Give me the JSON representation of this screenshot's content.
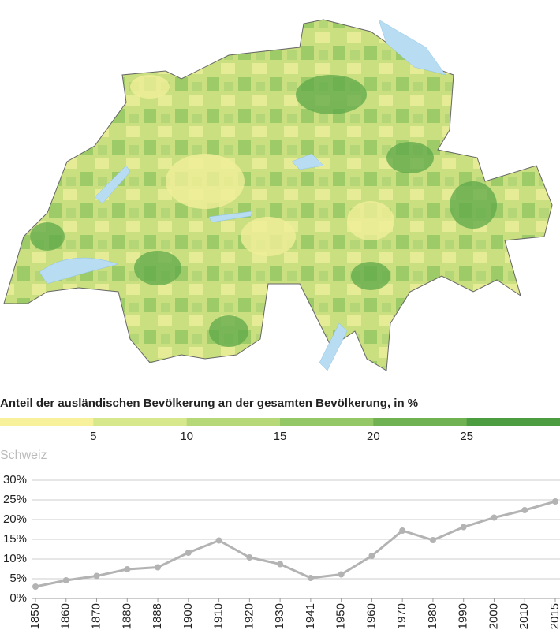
{
  "map": {
    "legend_title": "Anteil der ausländischen Bevölkerung an der gesamten Bevölkerung, in %",
    "legend_colors": [
      "#f6f19a",
      "#d7e78b",
      "#b6d878",
      "#94c765",
      "#70b252",
      "#4c9c40"
    ],
    "legend_lim": [
      0,
      30
    ],
    "legend_ticks": [
      5,
      10,
      15,
      20,
      25
    ]
  },
  "chart_data": {
    "type": "line",
    "title": "Schweiz",
    "categories": [
      "1850",
      "1860",
      "1870",
      "1880",
      "1888",
      "1900",
      "1910",
      "1920",
      "1930",
      "1941",
      "1950",
      "1960",
      "1970",
      "1980",
      "1990",
      "2000",
      "2010",
      "2015"
    ],
    "series": [
      {
        "name": "Schweiz",
        "color": "#b3b3b3",
        "values": [
          3.0,
          4.6,
          5.7,
          7.4,
          7.9,
          11.6,
          14.7,
          10.4,
          8.7,
          5.2,
          6.1,
          10.8,
          17.2,
          14.8,
          18.1,
          20.5,
          22.4,
          24.6
        ]
      }
    ],
    "ylim": [
      0,
      30
    ],
    "yticks": [
      {
        "value": 0,
        "label": "0%"
      },
      {
        "value": 5,
        "label": "5%"
      },
      {
        "value": 10,
        "label": "10%"
      },
      {
        "value": 15,
        "label": "15%"
      },
      {
        "value": 20,
        "label": "20%"
      },
      {
        "value": 25,
        "label": "25%"
      },
      {
        "value": 30,
        "label": "30%"
      }
    ],
    "grid": true
  }
}
